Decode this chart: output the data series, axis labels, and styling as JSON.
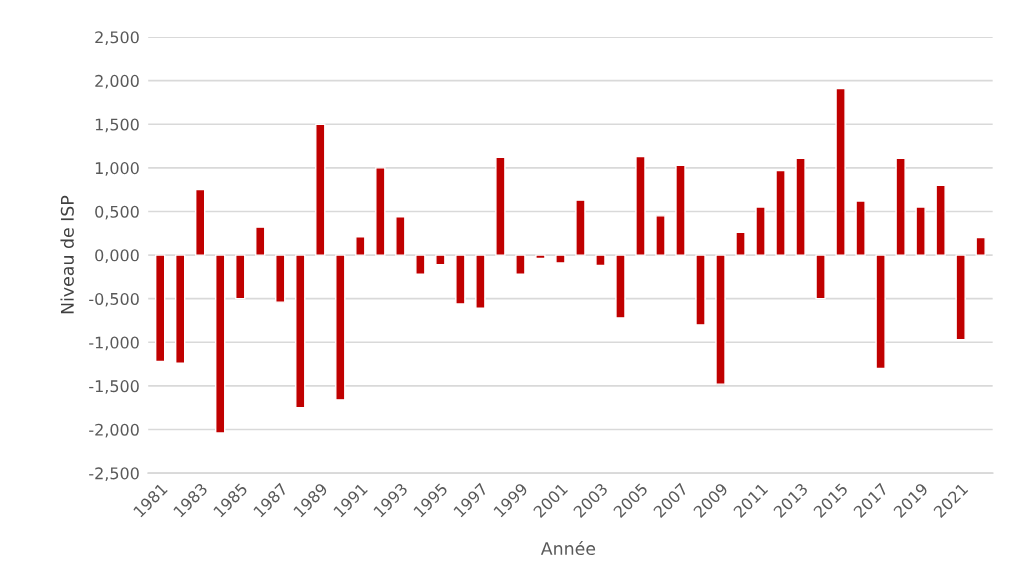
{
  "chart_data": {
    "type": "bar",
    "xlabel": "Année",
    "ylabel": "Niveau de ISP",
    "categories": [
      "1981",
      null,
      "1983",
      null,
      "1985",
      null,
      "1987",
      null,
      "1989",
      null,
      "1991",
      null,
      "1993",
      null,
      "1995",
      null,
      "1997",
      null,
      "1999",
      null,
      "2001",
      null,
      "2003",
      null,
      "2005",
      null,
      "2007",
      null,
      "2009",
      null,
      "2011",
      null,
      "2013",
      null,
      "2015",
      null,
      "2017",
      null,
      "2019",
      null,
      "2021",
      null
    ],
    "values": [
      -1.22,
      -1.24,
      0.75,
      -2.04,
      -0.5,
      0.32,
      -0.54,
      -1.75,
      1.5,
      -1.66,
      0.21,
      1.0,
      0.44,
      -0.22,
      -0.11,
      -0.56,
      -0.61,
      1.12,
      -0.22,
      -0.04,
      -0.09,
      0.63,
      -0.12,
      -0.72,
      1.13,
      0.45,
      1.03,
      -0.8,
      -1.48,
      0.26,
      0.55,
      0.97,
      1.11,
      -0.5,
      1.91,
      0.62,
      -1.3,
      1.11,
      0.55,
      0.8,
      -0.97,
      0.2
    ],
    "color": "#c00000",
    "ylim": [
      -2.5,
      2.5
    ],
    "yticks": [
      {
        "value": -2.5,
        "label": "-2,500"
      },
      {
        "value": -2.0,
        "label": "-2,000"
      },
      {
        "value": -1.5,
        "label": "-1,500"
      },
      {
        "value": -1.0,
        "label": "-1,000"
      },
      {
        "value": -0.5,
        "label": "-0,500"
      },
      {
        "value": 0,
        "label": "0,000"
      },
      {
        "value": 0.5,
        "label": "0,500"
      },
      {
        "value": 1.0,
        "label": "1,000"
      },
      {
        "value": 1.5,
        "label": "1,500"
      },
      {
        "value": 2.0,
        "label": "2,000"
      },
      {
        "value": 2.5,
        "label": "2,500"
      }
    ],
    "grid": "y",
    "legend": false
  }
}
